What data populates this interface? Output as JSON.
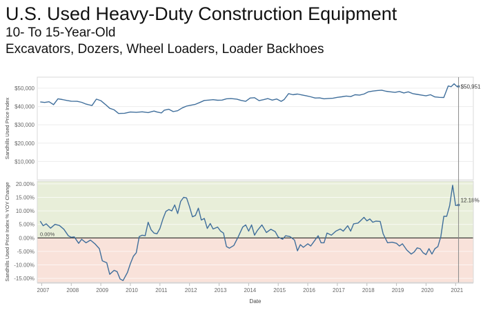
{
  "title": "U.S. Used Heavy-Duty Construction Equipment",
  "subtitles": [
    "10- To 15-Year-Old",
    "Excavators, Dozers, Wheel Loaders, Loader Backhoes"
  ],
  "chart_data": [
    {
      "type": "line",
      "ylabel": "Sandhills Used Price Index",
      "ylim": [
        0,
        56000
      ],
      "yticks": [
        {
          "value": 10000,
          "label": "$10,000"
        },
        {
          "value": 20000,
          "label": "$20,000"
        },
        {
          "value": 30000,
          "label": "$30,000"
        },
        {
          "value": 40000,
          "label": "$40,000"
        },
        {
          "value": 50000,
          "label": "$50,000"
        }
      ],
      "grid": true,
      "end_label": "$50,951",
      "series": [
        {
          "color": "#3f6e9b",
          "points": [
            [
              2006.95,
              42500
            ],
            [
              2007.1,
              42200
            ],
            [
              2007.25,
              42600
            ],
            [
              2007.4,
              41000
            ],
            [
              2007.55,
              44200
            ],
            [
              2007.7,
              43800
            ],
            [
              2007.85,
              43300
            ],
            [
              2008.0,
              42900
            ],
            [
              2008.2,
              42800
            ],
            [
              2008.35,
              42300
            ],
            [
              2008.5,
              41300
            ],
            [
              2008.7,
              40500
            ],
            [
              2008.85,
              44000
            ],
            [
              2009.0,
              43200
            ],
            [
              2009.15,
              41200
            ],
            [
              2009.3,
              39000
            ],
            [
              2009.45,
              38200
            ],
            [
              2009.6,
              36200
            ],
            [
              2009.8,
              36300
            ],
            [
              2010.0,
              37000
            ],
            [
              2010.2,
              36800
            ],
            [
              2010.4,
              37100
            ],
            [
              2010.6,
              36700
            ],
            [
              2010.8,
              37500
            ],
            [
              2010.9,
              37000
            ],
            [
              2011.05,
              36500
            ],
            [
              2011.15,
              38000
            ],
            [
              2011.3,
              38500
            ],
            [
              2011.45,
              37200
            ],
            [
              2011.6,
              37700
            ],
            [
              2011.75,
              39200
            ],
            [
              2011.9,
              40200
            ],
            [
              2012.05,
              40700
            ],
            [
              2012.2,
              41200
            ],
            [
              2012.35,
              42200
            ],
            [
              2012.5,
              43300
            ],
            [
              2012.65,
              43500
            ],
            [
              2012.8,
              43700
            ],
            [
              2012.95,
              43400
            ],
            [
              2013.1,
              43500
            ],
            [
              2013.25,
              44200
            ],
            [
              2013.4,
              44300
            ],
            [
              2013.6,
              44000
            ],
            [
              2013.75,
              43300
            ],
            [
              2013.9,
              42800
            ],
            [
              2014.05,
              44600
            ],
            [
              2014.2,
              44800
            ],
            [
              2014.35,
              43200
            ],
            [
              2014.5,
              43700
            ],
            [
              2014.65,
              44300
            ],
            [
              2014.8,
              43500
            ],
            [
              2014.95,
              44100
            ],
            [
              2015.1,
              42800
            ],
            [
              2015.2,
              43800
            ],
            [
              2015.35,
              47000
            ],
            [
              2015.5,
              46400
            ],
            [
              2015.65,
              46800
            ],
            [
              2015.8,
              46300
            ],
            [
              2015.95,
              45800
            ],
            [
              2016.1,
              45300
            ],
            [
              2016.25,
              44600
            ],
            [
              2016.4,
              44700
            ],
            [
              2016.55,
              44200
            ],
            [
              2016.7,
              44400
            ],
            [
              2016.85,
              44500
            ],
            [
              2017.0,
              45000
            ],
            [
              2017.15,
              45300
            ],
            [
              2017.3,
              45700
            ],
            [
              2017.45,
              45400
            ],
            [
              2017.6,
              46400
            ],
            [
              2017.75,
              46200
            ],
            [
              2017.9,
              46800
            ],
            [
              2018.05,
              48000
            ],
            [
              2018.2,
              48400
            ],
            [
              2018.35,
              48700
            ],
            [
              2018.5,
              48900
            ],
            [
              2018.65,
              48300
            ],
            [
              2018.8,
              48000
            ],
            [
              2018.95,
              47700
            ],
            [
              2019.1,
              48200
            ],
            [
              2019.25,
              47400
            ],
            [
              2019.4,
              48000
            ],
            [
              2019.55,
              47000
            ],
            [
              2019.7,
              46600
            ],
            [
              2019.85,
              46200
            ],
            [
              2020.0,
              45800
            ],
            [
              2020.15,
              46400
            ],
            [
              2020.3,
              45200
            ],
            [
              2020.45,
              45000
            ],
            [
              2020.6,
              44900
            ],
            [
              2020.75,
              51200
            ],
            [
              2020.85,
              50800
            ],
            [
              2020.95,
              52400
            ],
            [
              2021.05,
              50800
            ],
            [
              2021.1,
              50951
            ]
          ]
        }
      ]
    },
    {
      "type": "area",
      "ylabel": "Sandhills Used Price Index % YOY Change",
      "ylim": [
        -16.5,
        21
      ],
      "yticks": [
        {
          "value": 20,
          "label": "20.00%"
        },
        {
          "value": 15,
          "label": "15.00%"
        },
        {
          "value": 10,
          "label": "10.00%"
        },
        {
          "value": 5,
          "label": "5.00%"
        },
        {
          "value": 0,
          "label": "0.00%"
        },
        {
          "value": -5,
          "label": "-5.00%"
        },
        {
          "value": -10,
          "label": "-10.00%"
        },
        {
          "value": -15,
          "label": "-15.00%"
        }
      ],
      "positive_fill": "#e8eed9",
      "negative_fill": "#f9e2da",
      "zero_label": "0.00%",
      "end_label": "12.18%",
      "xlabel": "Date",
      "xlim": [
        2006.85,
        2021.6
      ],
      "xticks": [
        2007,
        2008,
        2009,
        2010,
        2011,
        2012,
        2013,
        2014,
        2015,
        2016,
        2017,
        2018,
        2019,
        2020,
        2021
      ],
      "series": [
        {
          "color": "#3f6e9b",
          "points": [
            [
              2006.95,
              6.2
            ],
            [
              2007.05,
              4.5
            ],
            [
              2007.15,
              5.2
            ],
            [
              2007.3,
              3.6
            ],
            [
              2007.45,
              5.0
            ],
            [
              2007.6,
              4.6
            ],
            [
              2007.75,
              3.2
            ],
            [
              2007.9,
              0.8
            ],
            [
              2008.0,
              0.2
            ],
            [
              2008.1,
              0.4
            ],
            [
              2008.25,
              -2.0
            ],
            [
              2008.35,
              -0.5
            ],
            [
              2008.5,
              -1.8
            ],
            [
              2008.65,
              -0.8
            ],
            [
              2008.8,
              -2.2
            ],
            [
              2008.95,
              -4.0
            ],
            [
              2009.05,
              -8.5
            ],
            [
              2009.2,
              -9.2
            ],
            [
              2009.3,
              -13.5
            ],
            [
              2009.45,
              -12.0
            ],
            [
              2009.55,
              -12.5
            ],
            [
              2009.65,
              -15.2
            ],
            [
              2009.75,
              -15.8
            ],
            [
              2009.9,
              -12.8
            ],
            [
              2010.0,
              -9.5
            ],
            [
              2010.1,
              -6.8
            ],
            [
              2010.2,
              -5.5
            ],
            [
              2010.3,
              0.5
            ],
            [
              2010.4,
              1.0
            ],
            [
              2010.5,
              0.8
            ],
            [
              2010.6,
              5.8
            ],
            [
              2010.7,
              3.0
            ],
            [
              2010.8,
              1.8
            ],
            [
              2010.9,
              1.5
            ],
            [
              2011.0,
              3.5
            ],
            [
              2011.1,
              7.0
            ],
            [
              2011.2,
              9.8
            ],
            [
              2011.3,
              10.5
            ],
            [
              2011.4,
              10.0
            ],
            [
              2011.5,
              12.2
            ],
            [
              2011.6,
              9.0
            ],
            [
              2011.7,
              13.5
            ],
            [
              2011.8,
              15.0
            ],
            [
              2011.9,
              14.8
            ],
            [
              2012.0,
              11.5
            ],
            [
              2012.1,
              7.8
            ],
            [
              2012.2,
              8.3
            ],
            [
              2012.3,
              11.0
            ],
            [
              2012.4,
              6.6
            ],
            [
              2012.5,
              7.2
            ],
            [
              2012.6,
              3.5
            ],
            [
              2012.7,
              5.3
            ],
            [
              2012.8,
              3.3
            ],
            [
              2012.95,
              4.0
            ],
            [
              2013.05,
              2.5
            ],
            [
              2013.15,
              1.8
            ],
            [
              2013.25,
              -3.2
            ],
            [
              2013.35,
              -3.8
            ],
            [
              2013.5,
              -2.8
            ],
            [
              2013.65,
              0.5
            ],
            [
              2013.8,
              4.0
            ],
            [
              2013.9,
              4.8
            ],
            [
              2014.0,
              2.5
            ],
            [
              2014.1,
              4.8
            ],
            [
              2014.2,
              1.0
            ],
            [
              2014.3,
              2.8
            ],
            [
              2014.45,
              4.8
            ],
            [
              2014.6,
              2.0
            ],
            [
              2014.75,
              3.2
            ],
            [
              2014.9,
              2.3
            ],
            [
              2015.0,
              0.3
            ],
            [
              2015.15,
              -0.5
            ],
            [
              2015.25,
              0.8
            ],
            [
              2015.4,
              0.5
            ],
            [
              2015.55,
              -0.8
            ],
            [
              2015.65,
              -4.8
            ],
            [
              2015.75,
              -2.5
            ],
            [
              2015.85,
              -3.5
            ],
            [
              2016.0,
              -2.2
            ],
            [
              2016.1,
              -3.0
            ],
            [
              2016.2,
              -1.5
            ],
            [
              2016.35,
              0.8
            ],
            [
              2016.45,
              -1.8
            ],
            [
              2016.55,
              -1.8
            ],
            [
              2016.65,
              1.8
            ],
            [
              2016.8,
              1.0
            ],
            [
              2016.95,
              2.5
            ],
            [
              2017.1,
              3.3
            ],
            [
              2017.2,
              2.5
            ],
            [
              2017.35,
              4.5
            ],
            [
              2017.45,
              2.5
            ],
            [
              2017.55,
              5.2
            ],
            [
              2017.7,
              5.5
            ],
            [
              2017.8,
              6.5
            ],
            [
              2017.9,
              7.6
            ],
            [
              2018.0,
              6.3
            ],
            [
              2018.1,
              7.0
            ],
            [
              2018.2,
              5.8
            ],
            [
              2018.3,
              6.2
            ],
            [
              2018.45,
              6.1
            ],
            [
              2018.55,
              1.5
            ],
            [
              2018.7,
              -1.8
            ],
            [
              2018.85,
              -1.6
            ],
            [
              2019.0,
              -2.0
            ],
            [
              2019.1,
              -3.0
            ],
            [
              2019.2,
              -2.2
            ],
            [
              2019.35,
              -4.5
            ],
            [
              2019.5,
              -6.0
            ],
            [
              2019.6,
              -5.2
            ],
            [
              2019.7,
              -3.7
            ],
            [
              2019.8,
              -4.0
            ],
            [
              2019.9,
              -5.5
            ],
            [
              2020.0,
              -6.2
            ],
            [
              2020.1,
              -4.0
            ],
            [
              2020.2,
              -6.0
            ],
            [
              2020.3,
              -4.0
            ],
            [
              2020.4,
              -3.2
            ],
            [
              2020.5,
              0.5
            ],
            [
              2020.6,
              8.0
            ],
            [
              2020.7,
              8.0
            ],
            [
              2020.8,
              12.0
            ],
            [
              2020.9,
              19.5
            ],
            [
              2021.0,
              12.0
            ],
            [
              2021.1,
              12.18
            ]
          ]
        }
      ]
    }
  ]
}
